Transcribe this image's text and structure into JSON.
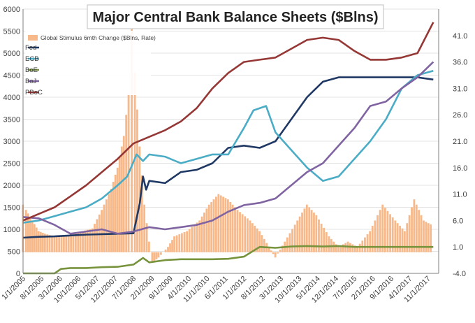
{
  "chart_data": {
    "type": "line+bar",
    "title": "Major Central Bank Balance Sheets ($Blns)",
    "y_left": {
      "min": 0,
      "max": 6000,
      "step": 500,
      "ticks": [
        "0",
        "500",
        "1000",
        "1500",
        "2000",
        "2500",
        "3000",
        "3500",
        "4000",
        "4500",
        "5000",
        "5500",
        "6000"
      ]
    },
    "y_right": {
      "min": -4.0,
      "max": 46.0,
      "ticks": [
        "-4.0",
        "1.0",
        "6.0",
        "11.0",
        "16.0",
        "21.0",
        "26.0",
        "31.0",
        "36.0",
        "41.0"
      ]
    },
    "x_ticks": [
      "1/1/2005",
      "8/1/2005",
      "3/1/2006",
      "10/1/2006",
      "5/1/2007",
      "12/1/2007",
      "7/1/2008",
      "2/1/2009",
      "9/1/2009",
      "4/1/2010",
      "11/1/2010",
      "6/1/2011",
      "1/1/2012",
      "8/1/2012",
      "3/1/2013",
      "10/1/2013",
      "5/1/2014",
      "12/1/2014",
      "7/1/2015",
      "2/1/2016",
      "9/1/2016",
      "4/1/2017",
      "11/1/2017"
    ],
    "x_range": [
      "1/1/2005",
      "3/1/2018"
    ],
    "grid": true,
    "legend_placement": "top-left",
    "legend": [
      {
        "label": "Global Stimulus 6mth Change ($Blns, Rate)",
        "kind": "bar"
      },
      {
        "label": "Fed",
        "kind": "line"
      },
      {
        "label": "ECB",
        "kind": "line"
      },
      {
        "label": "BoE",
        "kind": "line"
      },
      {
        "label": "BoJ",
        "kind": "line"
      },
      {
        "label": "PBoC",
        "kind": "line"
      }
    ],
    "bars": {
      "name": "Global Stimulus 6mth Change ($Blns, Rate)",
      "axis": "right",
      "color": "#f8b98a",
      "points": [
        [
          2005.0,
          9
        ],
        [
          2005.1,
          8
        ],
        [
          2005.3,
          6
        ],
        [
          2005.5,
          4
        ],
        [
          2005.7,
          3.5
        ],
        [
          2006.0,
          3
        ],
        [
          2006.3,
          3
        ],
        [
          2006.6,
          3.5
        ],
        [
          2006.9,
          4
        ],
        [
          2007.2,
          4.5
        ],
        [
          2007.5,
          8
        ],
        [
          2007.8,
          12
        ],
        [
          2008.0,
          16
        ],
        [
          2008.2,
          22
        ],
        [
          2008.35,
          30
        ],
        [
          2008.45,
          44
        ],
        [
          2008.55,
          34
        ],
        [
          2008.7,
          20
        ],
        [
          2008.85,
          9
        ],
        [
          2009.0,
          2
        ],
        [
          2009.1,
          -2
        ],
        [
          2009.3,
          -1
        ],
        [
          2009.6,
          1
        ],
        [
          2009.8,
          3
        ],
        [
          2010.2,
          4
        ],
        [
          2010.6,
          6
        ],
        [
          2010.9,
          9
        ],
        [
          2011.2,
          11
        ],
        [
          2011.5,
          10
        ],
        [
          2011.8,
          8
        ],
        [
          2012.2,
          6
        ],
        [
          2012.5,
          4
        ],
        [
          2012.8,
          1
        ],
        [
          2013.0,
          -1
        ],
        [
          2013.3,
          2
        ],
        [
          2013.7,
          6
        ],
        [
          2014.0,
          9
        ],
        [
          2014.3,
          7
        ],
        [
          2014.7,
          3
        ],
        [
          2015.0,
          1
        ],
        [
          2015.3,
          2
        ],
        [
          2015.6,
          1
        ],
        [
          2016.0,
          4
        ],
        [
          2016.4,
          9
        ],
        [
          2016.8,
          6
        ],
        [
          2017.1,
          4
        ],
        [
          2017.4,
          10
        ],
        [
          2017.7,
          6
        ],
        [
          2018.0,
          5
        ]
      ]
    },
    "series": [
      {
        "name": "Fed",
        "color": "#1f3864",
        "points": [
          [
            2005.0,
            810
          ],
          [
            2005.5,
            830
          ],
          [
            2006.0,
            840
          ],
          [
            2006.5,
            860
          ],
          [
            2007.0,
            880
          ],
          [
            2007.5,
            890
          ],
          [
            2008.0,
            900
          ],
          [
            2008.5,
            910
          ],
          [
            2008.7,
            1600
          ],
          [
            2008.8,
            2200
          ],
          [
            2008.9,
            1900
          ],
          [
            2009.0,
            2100
          ],
          [
            2009.5,
            2050
          ],
          [
            2010.0,
            2300
          ],
          [
            2010.5,
            2350
          ],
          [
            2011.0,
            2500
          ],
          [
            2011.5,
            2850
          ],
          [
            2012.0,
            2900
          ],
          [
            2012.5,
            2850
          ],
          [
            2013.0,
            3000
          ],
          [
            2013.5,
            3500
          ],
          [
            2014.0,
            4000
          ],
          [
            2014.5,
            4350
          ],
          [
            2015.0,
            4450
          ],
          [
            2015.5,
            4450
          ],
          [
            2016.0,
            4450
          ],
          [
            2016.5,
            4450
          ],
          [
            2017.0,
            4450
          ],
          [
            2017.5,
            4450
          ],
          [
            2018.0,
            4400
          ]
        ]
      },
      {
        "name": "ECB",
        "color": "#4bacc6",
        "points": [
          [
            2005.0,
            1150
          ],
          [
            2005.5,
            1200
          ],
          [
            2006.0,
            1300
          ],
          [
            2006.5,
            1400
          ],
          [
            2007.0,
            1500
          ],
          [
            2007.5,
            1700
          ],
          [
            2008.0,
            2000
          ],
          [
            2008.3,
            2200
          ],
          [
            2008.6,
            2700
          ],
          [
            2008.8,
            2550
          ],
          [
            2009.0,
            2700
          ],
          [
            2009.5,
            2650
          ],
          [
            2010.0,
            2500
          ],
          [
            2010.5,
            2600
          ],
          [
            2011.0,
            2700
          ],
          [
            2011.5,
            2700
          ],
          [
            2012.0,
            3300
          ],
          [
            2012.3,
            3700
          ],
          [
            2012.7,
            3800
          ],
          [
            2013.0,
            3200
          ],
          [
            2013.5,
            2800
          ],
          [
            2014.0,
            2400
          ],
          [
            2014.5,
            2100
          ],
          [
            2015.0,
            2200
          ],
          [
            2015.5,
            2600
          ],
          [
            2016.0,
            3000
          ],
          [
            2016.5,
            3500
          ],
          [
            2017.0,
            4200
          ],
          [
            2017.5,
            4500
          ],
          [
            2018.0,
            4600
          ]
        ]
      },
      {
        "name": "BoE",
        "color": "#77933c",
        "points": [
          [
            2005.0,
            0
          ],
          [
            2005.5,
            0
          ],
          [
            2006.0,
            0
          ],
          [
            2006.2,
            100
          ],
          [
            2006.5,
            120
          ],
          [
            2007.0,
            120
          ],
          [
            2007.5,
            140
          ],
          [
            2008.0,
            150
          ],
          [
            2008.5,
            200
          ],
          [
            2008.8,
            350
          ],
          [
            2009.0,
            250
          ],
          [
            2009.5,
            300
          ],
          [
            2010.0,
            320
          ],
          [
            2010.5,
            320
          ],
          [
            2011.0,
            320
          ],
          [
            2011.5,
            330
          ],
          [
            2012.0,
            380
          ],
          [
            2012.5,
            600
          ],
          [
            2013.0,
            580
          ],
          [
            2013.5,
            610
          ],
          [
            2014.0,
            620
          ],
          [
            2014.5,
            610
          ],
          [
            2015.0,
            620
          ],
          [
            2015.5,
            600
          ],
          [
            2016.0,
            600
          ],
          [
            2016.5,
            600
          ],
          [
            2017.0,
            600
          ],
          [
            2017.5,
            600
          ],
          [
            2018.0,
            600
          ]
        ]
      },
      {
        "name": "BoJ",
        "color": "#8064a2",
        "points": [
          [
            2005.0,
            1280
          ],
          [
            2005.5,
            1250
          ],
          [
            2006.0,
            1100
          ],
          [
            2006.5,
            900
          ],
          [
            2007.0,
            950
          ],
          [
            2007.5,
            1000
          ],
          [
            2008.0,
            900
          ],
          [
            2008.5,
            950
          ],
          [
            2009.0,
            1050
          ],
          [
            2009.5,
            1000
          ],
          [
            2010.0,
            1050
          ],
          [
            2010.5,
            1100
          ],
          [
            2011.0,
            1200
          ],
          [
            2011.5,
            1400
          ],
          [
            2012.0,
            1550
          ],
          [
            2012.5,
            1600
          ],
          [
            2013.0,
            1700
          ],
          [
            2013.5,
            2000
          ],
          [
            2014.0,
            2300
          ],
          [
            2014.5,
            2500
          ],
          [
            2015.0,
            2900
          ],
          [
            2015.5,
            3300
          ],
          [
            2016.0,
            3800
          ],
          [
            2016.5,
            3900
          ],
          [
            2017.0,
            4200
          ],
          [
            2017.5,
            4450
          ],
          [
            2018.0,
            4800
          ]
        ]
      },
      {
        "name": "PBoC",
        "color": "#953735",
        "points": [
          [
            2005.0,
            1200
          ],
          [
            2005.5,
            1350
          ],
          [
            2006.0,
            1500
          ],
          [
            2006.5,
            1750
          ],
          [
            2007.0,
            2000
          ],
          [
            2007.5,
            2300
          ],
          [
            2008.0,
            2600
          ],
          [
            2008.5,
            2950
          ],
          [
            2009.0,
            3100
          ],
          [
            2009.5,
            3250
          ],
          [
            2010.0,
            3450
          ],
          [
            2010.5,
            3750
          ],
          [
            2011.0,
            4200
          ],
          [
            2011.5,
            4550
          ],
          [
            2012.0,
            4800
          ],
          [
            2012.5,
            4850
          ],
          [
            2013.0,
            4900
          ],
          [
            2013.5,
            5100
          ],
          [
            2014.0,
            5300
          ],
          [
            2014.5,
            5350
          ],
          [
            2015.0,
            5300
          ],
          [
            2015.5,
            5050
          ],
          [
            2016.0,
            4850
          ],
          [
            2016.5,
            4850
          ],
          [
            2017.0,
            4900
          ],
          [
            2017.5,
            5000
          ],
          [
            2018.0,
            5700
          ]
        ]
      }
    ]
  }
}
